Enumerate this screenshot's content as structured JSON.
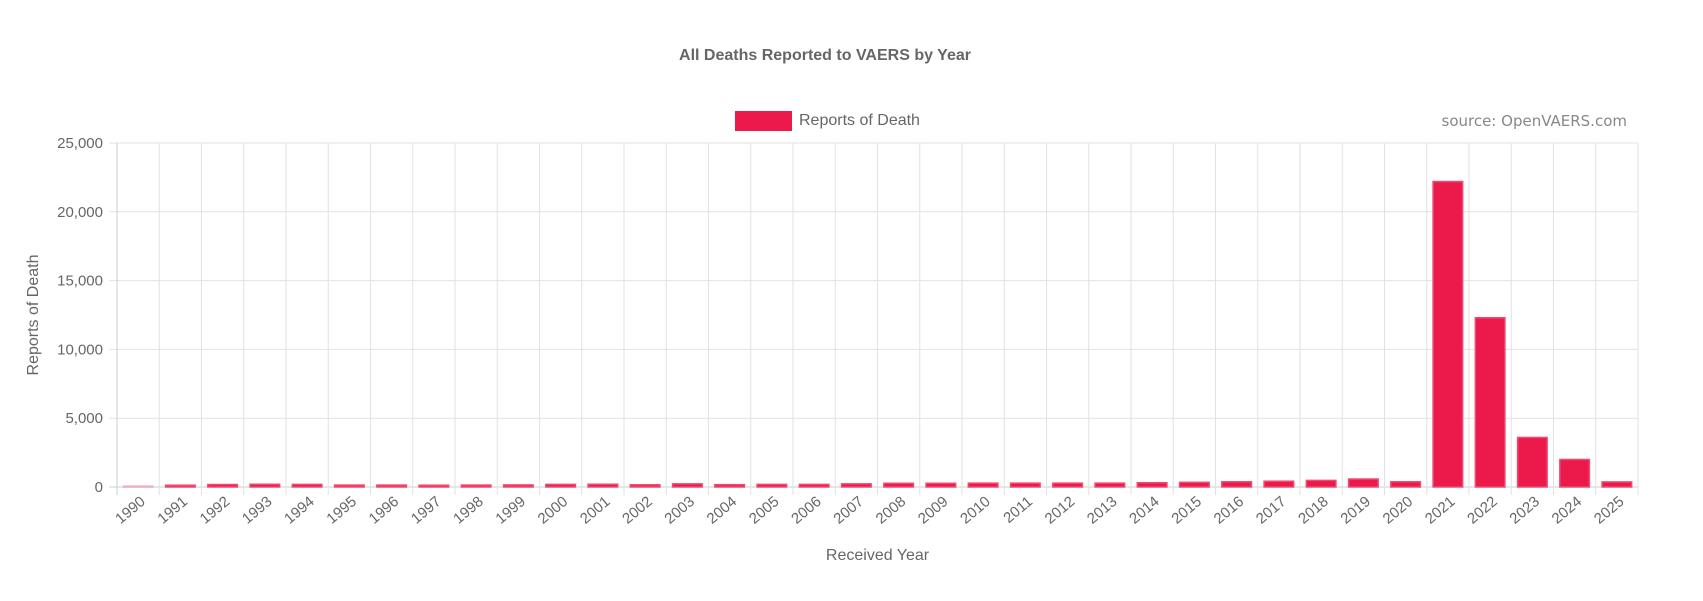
{
  "title": "All Deaths Reported to VAERS by Year",
  "source_note": "source: OpenVAERS.com",
  "legend": {
    "label": "Reports of Death",
    "color": "#ec1a4a"
  },
  "chart_data": {
    "type": "bar",
    "title": "All Deaths Reported to VAERS by Year",
    "xlabel": "Received Year",
    "ylabel": "Reports of Death",
    "ylim": [
      0,
      25000
    ],
    "yticks": [
      "25,000",
      "20,000",
      "15,000",
      "10,000",
      "5,000",
      "0"
    ],
    "ytick_values": [
      25000,
      20000,
      15000,
      10000,
      5000,
      0
    ],
    "grid": true,
    "legend_position": "top-center",
    "categories": [
      "1990",
      "1991",
      "1992",
      "1993",
      "1994",
      "1995",
      "1996",
      "1997",
      "1998",
      "1999",
      "2000",
      "2001",
      "2002",
      "2003",
      "2004",
      "2005",
      "2006",
      "2007",
      "2008",
      "2009",
      "2010",
      "2011",
      "2012",
      "2013",
      "2014",
      "2015",
      "2016",
      "2017",
      "2018",
      "2019",
      "2020",
      "2021",
      "2022",
      "2023",
      "2024",
      "2025"
    ],
    "series": [
      {
        "name": "Reports of Death",
        "color": "#ec1a4a",
        "values": [
          60,
          130,
          180,
          200,
          190,
          140,
          140,
          130,
          140,
          150,
          190,
          200,
          160,
          230,
          170,
          190,
          190,
          230,
          270,
          270,
          280,
          280,
          280,
          280,
          310,
          340,
          380,
          420,
          480,
          580,
          380,
          22200,
          12300,
          3600,
          2000,
          370
        ]
      }
    ]
  }
}
